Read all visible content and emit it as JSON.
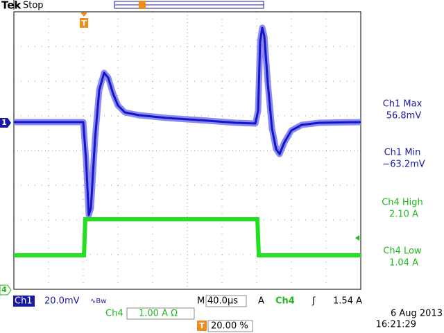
{
  "header": {
    "brand": "Tek",
    "status": "Stop"
  },
  "markers": {
    "trigger": "T",
    "ch1": "1",
    "ch4": "4"
  },
  "measurements": [
    {
      "label": "Ch1 Max",
      "value": "56.8mV"
    },
    {
      "label": "Ch1 Min",
      "value": "−63.2mV"
    },
    {
      "label": "Ch4 High",
      "value": "2.10 A"
    },
    {
      "label": "Ch4 Low",
      "value": "1.04 A"
    }
  ],
  "readout": {
    "ch1": "Ch1",
    "ch1_scale": "20.0mV",
    "bw": "∿Bw",
    "timebase_prefix": "M",
    "timebase": "40.0µs",
    "trigger_mode": "A",
    "trigger_source": "Ch4",
    "trigger_slope": "ʃ",
    "trigger_level": "1.54 A",
    "ch4": "Ch4",
    "ch4_scale": "1.00 A Ω",
    "trigger_position": "20.00 %",
    "date": "6 Aug 2013",
    "time": "16:21:29"
  }
}
